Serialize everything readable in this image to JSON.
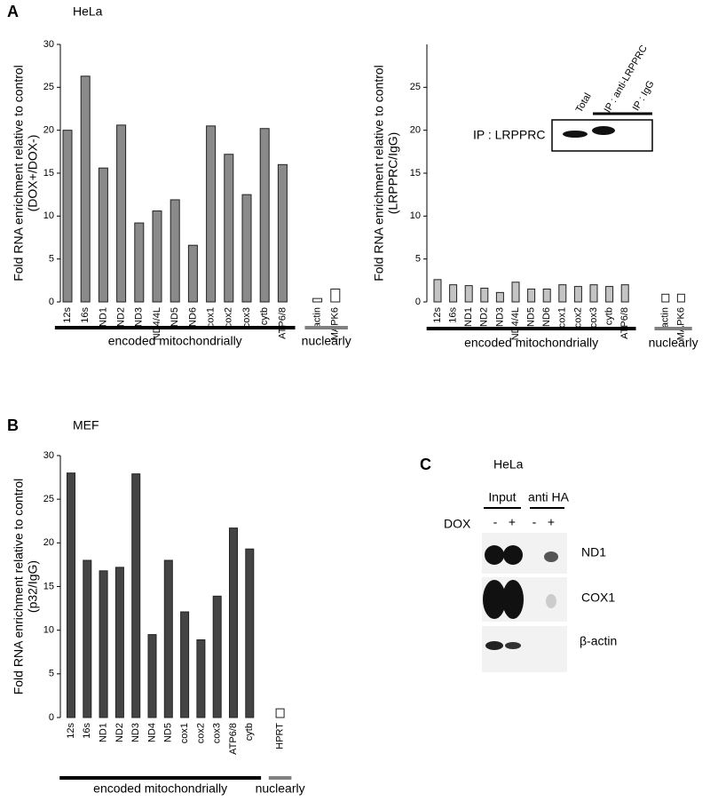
{
  "chart_data": [
    {
      "type": "bar",
      "panel": "A",
      "cell_line": "HeLa",
      "ylabel": [
        "Fold RNA enrichment relative to control",
        "(DOX+/DOX-)"
      ],
      "ylim": [
        0,
        30
      ],
      "yticks": [
        0,
        5,
        10,
        15,
        20,
        25,
        30
      ],
      "groups": [
        {
          "label": "encoded mitochondrially",
          "line_color": "#000000",
          "color": "#8a8a8a",
          "categories": [
            "12s",
            "16s",
            "ND1",
            "ND2",
            "ND3",
            "ND4/4L",
            "ND5",
            "ND6",
            "cox1",
            "cox2",
            "cox3",
            "cytb",
            "ATP6/8"
          ],
          "values": [
            20,
            26.3,
            15.6,
            20.6,
            9.2,
            10.6,
            11.9,
            6.6,
            20.5,
            17.2,
            12.5,
            20.2,
            16
          ]
        },
        {
          "label": "nuclearly",
          "line_color": "#808080",
          "color": "#ffffff",
          "categories": [
            "actin",
            "MAPK6"
          ],
          "values": [
            0.4,
            1.5
          ]
        }
      ]
    },
    {
      "type": "bar",
      "ylabel": [
        "Fold RNA enrichment relative to control",
        "(LRPPRC/IgG)"
      ],
      "ylim": [
        0,
        30
      ],
      "yticks": [
        0,
        5,
        10,
        15,
        20,
        25
      ],
      "groups": [
        {
          "label": "encoded mitochondrially",
          "line_color": "#000000",
          "color": "#c4c4c4",
          "categories": [
            "12s",
            "16s",
            "ND1",
            "ND2",
            "ND3",
            "ND4/4L",
            "ND5",
            "ND6",
            "cox1",
            "cox2",
            "cox3",
            "cytb",
            "ATP6/8"
          ],
          "values": [
            2.6,
            2.0,
            1.9,
            1.6,
            1.1,
            2.3,
            1.5,
            1.5,
            2.0,
            1.8,
            2.0,
            1.8,
            2.0
          ]
        },
        {
          "label": "nuclearly",
          "line_color": "#808080",
          "color": "#ffffff",
          "categories": [
            "actin",
            "MAPK6"
          ],
          "values": [
            0.9,
            0.9
          ]
        }
      ]
    },
    {
      "type": "bar",
      "panel": "B",
      "cell_line": "MEF",
      "ylabel": [
        "Fold RNA enrichment relative to control",
        "(p32/IgG)"
      ],
      "ylim": [
        0,
        30
      ],
      "yticks": [
        0,
        5,
        10,
        15,
        20,
        25,
        30
      ],
      "groups": [
        {
          "label": "encoded mitochondrially",
          "line_color": "#000000",
          "color": "#444444",
          "categories": [
            "12s",
            "16s",
            "ND1",
            "ND2",
            "ND3",
            "ND4",
            "ND5",
            "cox1",
            "cox2",
            "cox3",
            "ATP6/8",
            "cytb"
          ],
          "values": [
            28,
            18,
            16.8,
            17.2,
            27.9,
            9.5,
            18,
            12.1,
            8.9,
            13.9,
            21.7,
            19.3
          ]
        },
        {
          "label": "nuclearly",
          "line_color": "#808080",
          "color": "#ffffff",
          "categories": [
            "HPRT"
          ],
          "values": [
            1.0
          ]
        }
      ]
    }
  ],
  "blots": [
    {
      "rows": [
        "IP : LRPPRC"
      ],
      "lanes": [
        "Total",
        "IP : anti-LRPPRC",
        "IP : IgG"
      ]
    },
    {
      "panel": "C",
      "cell_line": "HeLa",
      "groups": [
        "Input",
        "anti HA"
      ],
      "treatment": "DOX",
      "lanes": [
        "-",
        "+",
        "-",
        "+"
      ],
      "rows": [
        "ND1",
        "COX1",
        "β-actin"
      ]
    }
  ]
}
